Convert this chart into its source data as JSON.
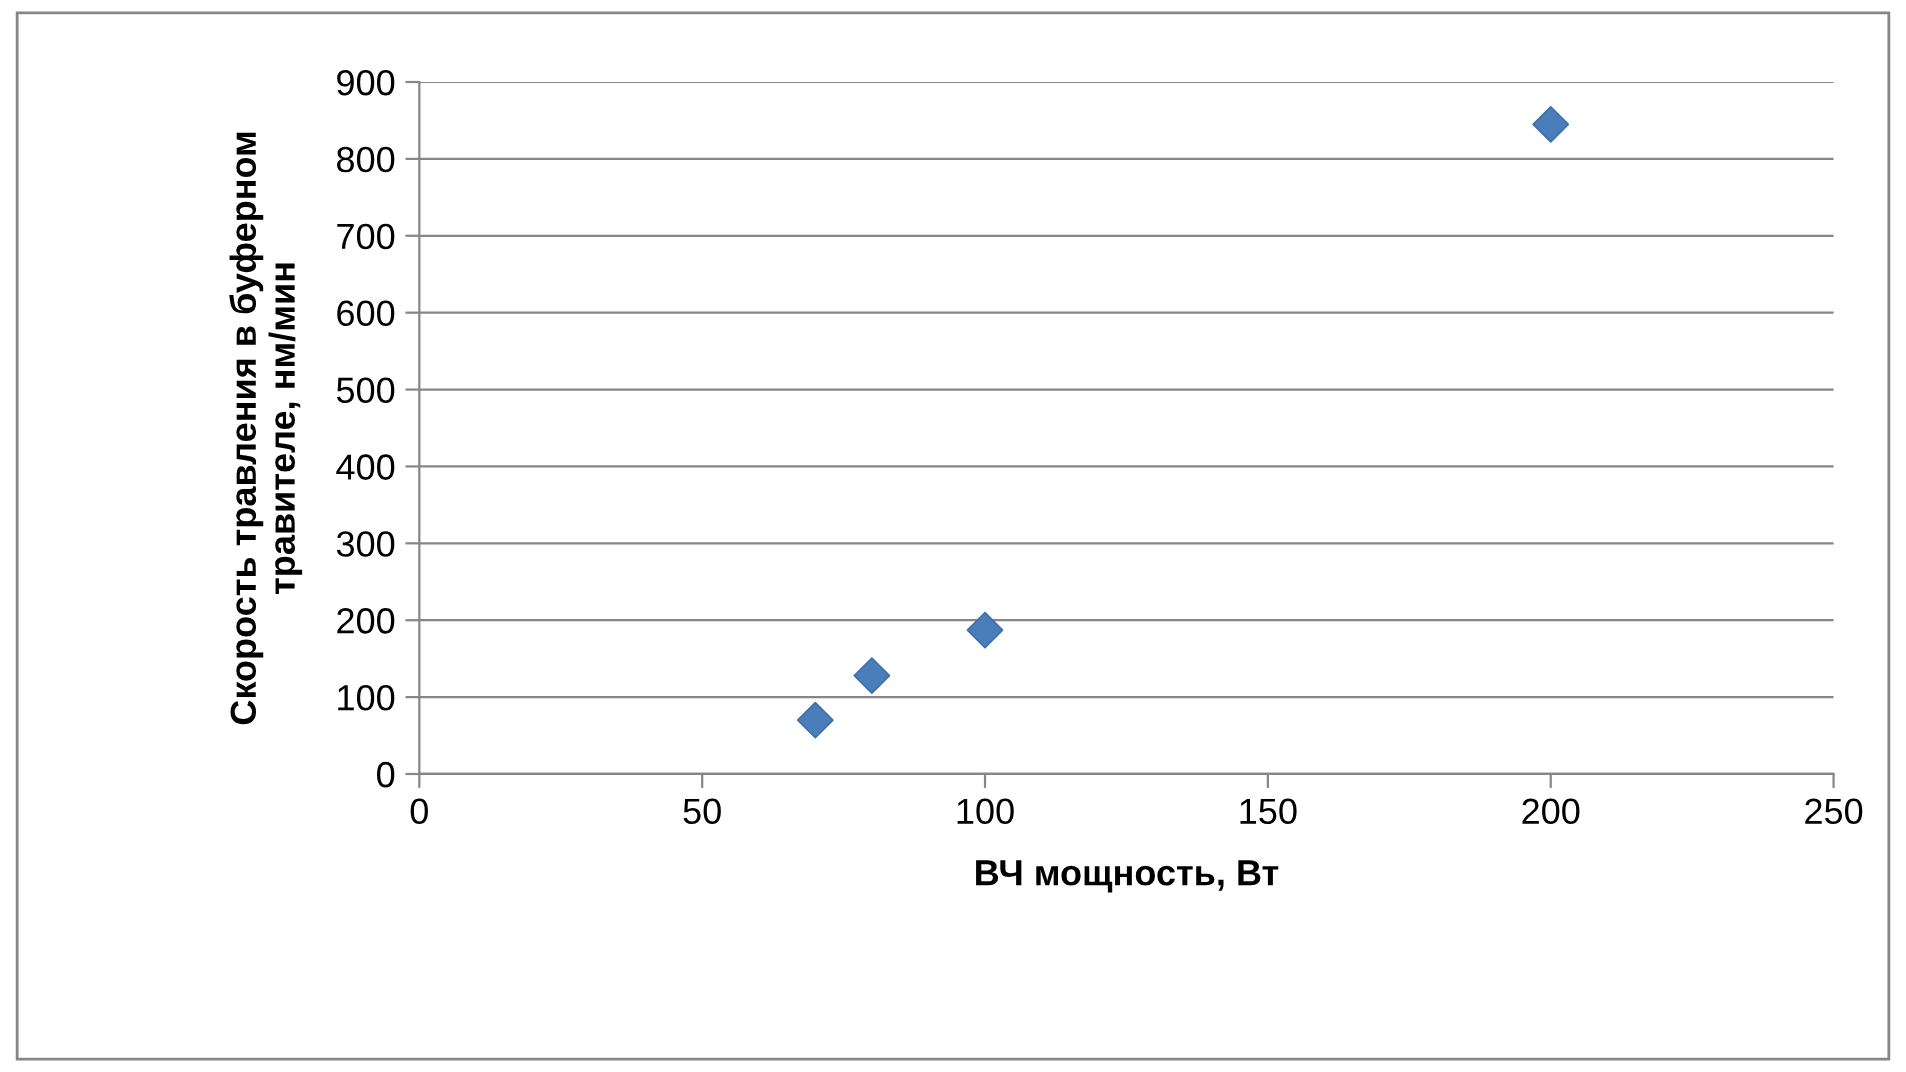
{
  "chart_data": {
    "type": "scatter",
    "xlabel": "ВЧ мощность, Вт",
    "ylabel": "Скорость травления в буферном\nтравителе, нм/мин",
    "x": [
      70,
      80,
      100,
      200
    ],
    "series": [
      {
        "color": "#4a7ebb",
        "values": [
          70,
          128,
          187,
          845
        ]
      }
    ],
    "xlim": [
      0,
      250
    ],
    "xticks": [
      0,
      50,
      100,
      150,
      200,
      250
    ],
    "ylim": [
      0,
      900
    ],
    "yticks": [
      0,
      100,
      200,
      300,
      400,
      500,
      600,
      700,
      800,
      900
    ],
    "grid": "y",
    "marker": "diamond",
    "legend": false
  }
}
